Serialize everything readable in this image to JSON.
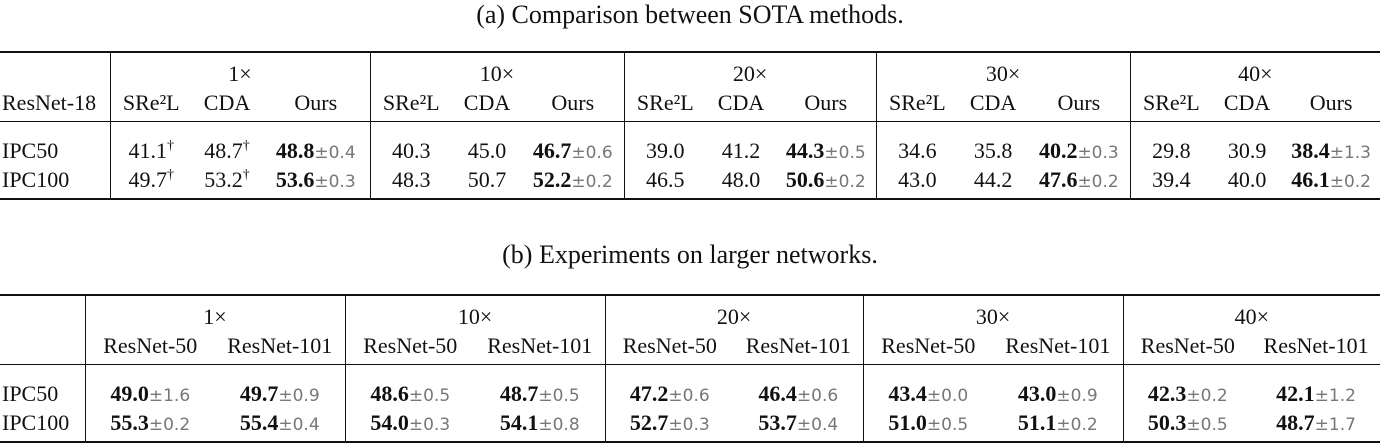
{
  "tables": [
    {
      "caption": "(a) Comparison between SOTA methods.",
      "corner": "ResNet-18",
      "groups": [
        "1×",
        "10×",
        "20×",
        "30×",
        "40×"
      ],
      "columns": [
        "SRe²L",
        "CDA",
        "Ours"
      ],
      "rows": [
        {
          "label": "IPC50",
          "cells": [
            {
              "value": "41.1",
              "note": "†"
            },
            {
              "value": "48.7",
              "note": "†"
            },
            {
              "value": "48.8",
              "std": "±0.4"
            },
            {
              "value": "40.3"
            },
            {
              "value": "45.0"
            },
            {
              "value": "46.7",
              "std": "±0.6"
            },
            {
              "value": "39.0"
            },
            {
              "value": "41.2"
            },
            {
              "value": "44.3",
              "std": "±0.5"
            },
            {
              "value": "34.6"
            },
            {
              "value": "35.8"
            },
            {
              "value": "40.2",
              "std": "±0.3"
            },
            {
              "value": "29.8"
            },
            {
              "value": "30.9"
            },
            {
              "value": "38.4",
              "std": "±1.3"
            }
          ]
        },
        {
          "label": "IPC100",
          "cells": [
            {
              "value": "49.7",
              "note": "†"
            },
            {
              "value": "53.2",
              "note": "†"
            },
            {
              "value": "53.6",
              "std": "±0.3"
            },
            {
              "value": "48.3"
            },
            {
              "value": "50.7"
            },
            {
              "value": "52.2",
              "std": "±0.2"
            },
            {
              "value": "46.5"
            },
            {
              "value": "48.0"
            },
            {
              "value": "50.6",
              "std": "±0.2"
            },
            {
              "value": "43.0"
            },
            {
              "value": "44.2"
            },
            {
              "value": "47.6",
              "std": "±0.2"
            },
            {
              "value": "39.4"
            },
            {
              "value": "40.0"
            },
            {
              "value": "46.1",
              "std": "±0.2"
            }
          ]
        }
      ]
    },
    {
      "caption": "(b) Experiments on larger networks.",
      "groups": [
        "1×",
        "10×",
        "20×",
        "30×",
        "40×"
      ],
      "columns": [
        "ResNet-50",
        "ResNet-101"
      ],
      "rows": [
        {
          "label": "IPC50",
          "cells": [
            {
              "value": "49.0",
              "std": "±1.6"
            },
            {
              "value": "49.7",
              "std": "±0.9"
            },
            {
              "value": "48.6",
              "std": "±0.5"
            },
            {
              "value": "48.7",
              "std": "±0.5"
            },
            {
              "value": "47.2",
              "std": "±0.6"
            },
            {
              "value": "46.4",
              "std": "±0.6"
            },
            {
              "value": "43.4",
              "std": "±0.0"
            },
            {
              "value": "43.0",
              "std": "±0.9"
            },
            {
              "value": "42.3",
              "std": "±0.2"
            },
            {
              "value": "42.1",
              "std": "±1.2"
            }
          ]
        },
        {
          "label": "IPC100",
          "cells": [
            {
              "value": "55.3",
              "std": "±0.2"
            },
            {
              "value": "55.4",
              "std": "±0.4"
            },
            {
              "value": "54.0",
              "std": "±0.3"
            },
            {
              "value": "54.1",
              "std": "±0.8"
            },
            {
              "value": "52.7",
              "std": "±0.3"
            },
            {
              "value": "53.7",
              "std": "±0.4"
            },
            {
              "value": "51.0",
              "std": "±0.5"
            },
            {
              "value": "51.1",
              "std": "±0.2"
            },
            {
              "value": "50.3",
              "std": "±0.5"
            },
            {
              "value": "48.7",
              "std": "±1.7"
            }
          ]
        }
      ]
    }
  ]
}
